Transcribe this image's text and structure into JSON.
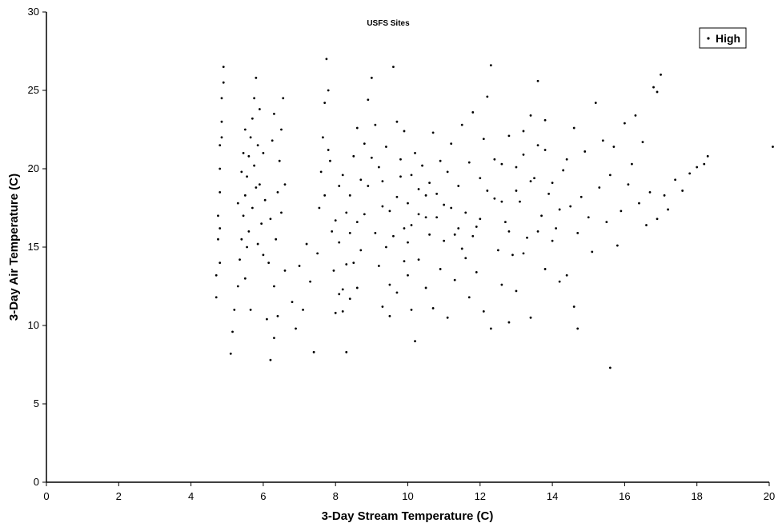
{
  "chart_data": {
    "type": "scatter",
    "title": "USFS Sites",
    "xlabel": "3-Day Stream Temperature (C)",
    "ylabel": "3-Day Air Temperature (C)",
    "xlim": [
      0,
      20
    ],
    "ylim": [
      0,
      30
    ],
    "xticks": [
      "0",
      "2",
      "4",
      "6",
      "8",
      "10",
      "12",
      "14",
      "16",
      "18",
      "20"
    ],
    "yticks": [
      "0",
      "5",
      "10",
      "15",
      "20",
      "25",
      "30"
    ],
    "grid": false,
    "legend_position": "top-right",
    "series": [
      {
        "name": "High",
        "marker": "dot",
        "color": "#000000",
        "points": [
          [
            4.7,
            11.8
          ],
          [
            4.7,
            13.2
          ],
          [
            4.75,
            15.5
          ],
          [
            4.75,
            17.0
          ],
          [
            4.8,
            18.5
          ],
          [
            4.8,
            20.0
          ],
          [
            4.8,
            21.5
          ],
          [
            4.85,
            23.0
          ],
          [
            4.85,
            24.5
          ],
          [
            4.9,
            26.5
          ],
          [
            4.85,
            22.0
          ],
          [
            4.8,
            16.2
          ],
          [
            4.8,
            14.0
          ],
          [
            4.9,
            25.5
          ],
          [
            5.1,
            8.2
          ],
          [
            5.15,
            9.6
          ],
          [
            5.2,
            11.0
          ],
          [
            5.3,
            12.5
          ],
          [
            5.35,
            14.2
          ],
          [
            5.4,
            15.5
          ],
          [
            5.45,
            17.0
          ],
          [
            5.5,
            18.3
          ],
          [
            5.55,
            19.5
          ],
          [
            5.6,
            20.8
          ],
          [
            5.65,
            22.0
          ],
          [
            5.7,
            23.2
          ],
          [
            5.75,
            24.5
          ],
          [
            5.8,
            25.8
          ],
          [
            5.85,
            21.5
          ],
          [
            5.9,
            19.0
          ],
          [
            5.95,
            16.5
          ],
          [
            6.0,
            14.5
          ],
          [
            5.6,
            16.0
          ],
          [
            5.7,
            17.5
          ],
          [
            5.8,
            18.8
          ],
          [
            5.5,
            13.0
          ],
          [
            5.65,
            11.0
          ],
          [
            5.4,
            19.8
          ],
          [
            5.5,
            22.5
          ],
          [
            5.9,
            23.8
          ],
          [
            6.0,
            21.0
          ],
          [
            6.05,
            18.0
          ],
          [
            5.3,
            17.8
          ],
          [
            5.45,
            21.0
          ],
          [
            5.75,
            20.2
          ],
          [
            5.55,
            15.0
          ],
          [
            5.85,
            15.2
          ],
          [
            6.1,
            10.4
          ],
          [
            6.2,
            7.8
          ],
          [
            6.3,
            9.2
          ],
          [
            6.4,
            10.6
          ],
          [
            6.3,
            12.5
          ],
          [
            6.35,
            15.5
          ],
          [
            6.4,
            18.5
          ],
          [
            6.45,
            20.5
          ],
          [
            6.5,
            22.5
          ],
          [
            6.55,
            24.5
          ],
          [
            6.6,
            19.0
          ],
          [
            6.2,
            16.8
          ],
          [
            6.25,
            21.8
          ],
          [
            6.3,
            23.5
          ],
          [
            6.15,
            14.0
          ],
          [
            6.5,
            17.2
          ],
          [
            6.6,
            13.5
          ],
          [
            6.8,
            11.5
          ],
          [
            6.9,
            9.8
          ],
          [
            7.0,
            13.8
          ],
          [
            7.1,
            11.0
          ],
          [
            7.2,
            15.2
          ],
          [
            7.3,
            12.8
          ],
          [
            7.4,
            8.3
          ],
          [
            7.5,
            14.6
          ],
          [
            7.55,
            17.5
          ],
          [
            7.6,
            19.8
          ],
          [
            7.65,
            22.0
          ],
          [
            7.7,
            24.2
          ],
          [
            7.75,
            27.0
          ],
          [
            7.8,
            25.0
          ],
          [
            7.85,
            20.5
          ],
          [
            7.9,
            16.0
          ],
          [
            7.95,
            13.5
          ],
          [
            8.0,
            10.8
          ],
          [
            7.7,
            18.3
          ],
          [
            7.8,
            21.2
          ],
          [
            8.1,
            15.3
          ],
          [
            8.2,
            12.3
          ],
          [
            8.3,
            8.3
          ],
          [
            8.4,
            11.7
          ],
          [
            8.5,
            14.0
          ],
          [
            8.6,
            16.6
          ],
          [
            8.7,
            19.3
          ],
          [
            8.8,
            21.6
          ],
          [
            8.9,
            24.4
          ],
          [
            9.0,
            25.8
          ],
          [
            9.1,
            22.8
          ],
          [
            9.2,
            20.1
          ],
          [
            9.3,
            17.6
          ],
          [
            9.4,
            15.0
          ],
          [
            9.5,
            12.6
          ],
          [
            9.6,
            26.5
          ],
          [
            9.7,
            23.0
          ],
          [
            9.8,
            19.5
          ],
          [
            9.9,
            16.2
          ],
          [
            10.0,
            13.2
          ],
          [
            10.1,
            11.0
          ],
          [
            10.2,
            9.0
          ],
          [
            8.6,
            12.4
          ],
          [
            8.7,
            14.8
          ],
          [
            8.8,
            17.1
          ],
          [
            8.9,
            18.9
          ],
          [
            9.0,
            20.7
          ],
          [
            9.1,
            15.9
          ],
          [
            9.2,
            13.8
          ],
          [
            9.3,
            19.2
          ],
          [
            9.4,
            21.4
          ],
          [
            9.5,
            17.3
          ],
          [
            9.6,
            15.7
          ],
          [
            9.7,
            18.2
          ],
          [
            9.8,
            20.6
          ],
          [
            9.9,
            22.4
          ],
          [
            10.0,
            17.8
          ],
          [
            10.1,
            19.6
          ],
          [
            10.2,
            21.0
          ],
          [
            10.3,
            18.7
          ],
          [
            10.4,
            20.2
          ],
          [
            10.5,
            16.9
          ],
          [
            10.6,
            19.1
          ],
          [
            10.7,
            22.3
          ],
          [
            10.8,
            18.4
          ],
          [
            10.9,
            20.5
          ],
          [
            11.0,
            17.7
          ],
          [
            11.1,
            19.8
          ],
          [
            11.2,
            21.6
          ],
          [
            11.3,
            15.8
          ],
          [
            11.4,
            18.9
          ],
          [
            11.5,
            22.8
          ],
          [
            11.6,
            17.2
          ],
          [
            11.7,
            20.4
          ],
          [
            11.8,
            23.6
          ],
          [
            11.9,
            16.3
          ],
          [
            12.0,
            19.4
          ],
          [
            12.1,
            21.9
          ],
          [
            12.2,
            24.6
          ],
          [
            12.3,
            26.6
          ],
          [
            12.4,
            18.1
          ],
          [
            12.5,
            14.8
          ],
          [
            10.3,
            14.2
          ],
          [
            10.5,
            12.4
          ],
          [
            10.7,
            11.1
          ],
          [
            10.9,
            13.6
          ],
          [
            11.1,
            10.5
          ],
          [
            11.3,
            12.9
          ],
          [
            11.5,
            14.9
          ],
          [
            11.7,
            11.8
          ],
          [
            11.9,
            13.4
          ],
          [
            12.1,
            10.9
          ],
          [
            12.3,
            9.8
          ],
          [
            12.6,
            12.6
          ],
          [
            12.8,
            10.2
          ],
          [
            13.0,
            12.2
          ],
          [
            13.2,
            14.6
          ],
          [
            13.4,
            10.5
          ],
          [
            13.6,
            16.0
          ],
          [
            13.8,
            13.6
          ],
          [
            14.0,
            15.4
          ],
          [
            14.2,
            12.8
          ],
          [
            14.4,
            13.2
          ],
          [
            14.6,
            11.2
          ],
          [
            14.7,
            9.8
          ],
          [
            12.6,
            20.3
          ],
          [
            12.8,
            22.1
          ],
          [
            13.0,
            18.6
          ],
          [
            13.2,
            20.9
          ],
          [
            13.4,
            23.4
          ],
          [
            13.6,
            25.6
          ],
          [
            13.8,
            21.2
          ],
          [
            14.0,
            19.1
          ],
          [
            14.2,
            17.4
          ],
          [
            14.4,
            20.6
          ],
          [
            14.6,
            22.6
          ],
          [
            14.8,
            18.2
          ],
          [
            15.0,
            16.9
          ],
          [
            15.2,
            24.2
          ],
          [
            15.4,
            21.8
          ],
          [
            15.6,
            19.6
          ],
          [
            15.8,
            15.1
          ],
          [
            16.0,
            22.9
          ],
          [
            16.2,
            20.3
          ],
          [
            16.4,
            17.8
          ],
          [
            16.6,
            16.4
          ],
          [
            16.8,
            25.2
          ],
          [
            16.9,
            24.9
          ],
          [
            17.0,
            26.0
          ],
          [
            17.1,
            18.3
          ],
          [
            17.2,
            17.4
          ],
          [
            17.4,
            19.3
          ],
          [
            17.6,
            18.6
          ],
          [
            17.8,
            19.7
          ],
          [
            18.0,
            20.1
          ],
          [
            18.2,
            20.3
          ],
          [
            18.3,
            20.8
          ],
          [
            20.1,
            21.4
          ],
          [
            12.7,
            16.6
          ],
          [
            12.9,
            14.5
          ],
          [
            13.1,
            17.9
          ],
          [
            13.3,
            15.6
          ],
          [
            13.5,
            19.4
          ],
          [
            13.7,
            17.0
          ],
          [
            13.9,
            18.4
          ],
          [
            14.1,
            16.2
          ],
          [
            14.3,
            19.9
          ],
          [
            14.5,
            17.6
          ],
          [
            14.7,
            15.9
          ],
          [
            14.9,
            21.1
          ],
          [
            15.1,
            14.7
          ],
          [
            15.3,
            18.8
          ],
          [
            15.5,
            16.6
          ],
          [
            15.7,
            21.4
          ],
          [
            15.9,
            17.3
          ],
          [
            16.1,
            19.0
          ],
          [
            16.3,
            23.4
          ],
          [
            16.5,
            21.7
          ],
          [
            16.7,
            18.5
          ],
          [
            16.9,
            16.8
          ],
          [
            8.2,
            19.6
          ],
          [
            8.3,
            17.2
          ],
          [
            8.4,
            15.9
          ],
          [
            8.5,
            20.8
          ],
          [
            8.6,
            22.6
          ],
          [
            8.4,
            18.3
          ],
          [
            8.3,
            13.9
          ],
          [
            8.2,
            10.9
          ],
          [
            8.1,
            12.0
          ],
          [
            8.0,
            16.7
          ],
          [
            8.1,
            18.9
          ],
          [
            9.3,
            11.2
          ],
          [
            9.5,
            10.6
          ],
          [
            9.7,
            12.1
          ],
          [
            9.9,
            14.1
          ],
          [
            10.0,
            15.3
          ],
          [
            10.1,
            16.4
          ],
          [
            10.3,
            17.1
          ],
          [
            10.5,
            18.3
          ],
          [
            10.6,
            15.8
          ],
          [
            10.8,
            16.9
          ],
          [
            11.0,
            15.4
          ],
          [
            11.2,
            17.5
          ],
          [
            11.4,
            16.2
          ],
          [
            11.6,
            14.3
          ],
          [
            11.8,
            15.7
          ],
          [
            12.0,
            16.8
          ],
          [
            12.2,
            18.6
          ],
          [
            12.4,
            20.6
          ],
          [
            12.6,
            17.9
          ],
          [
            12.8,
            16.0
          ],
          [
            13.0,
            20.1
          ],
          [
            13.2,
            22.4
          ],
          [
            13.4,
            19.2
          ],
          [
            13.6,
            21.5
          ],
          [
            13.8,
            23.1
          ],
          [
            15.6,
            7.3
          ]
        ]
      }
    ]
  }
}
